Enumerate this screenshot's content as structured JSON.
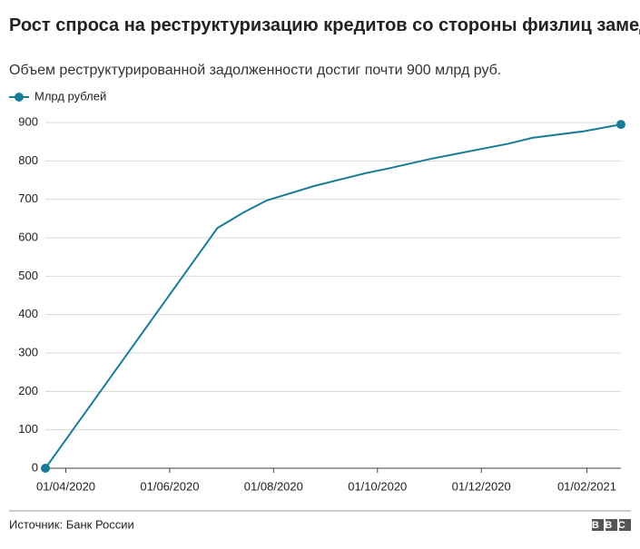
{
  "chart_data": {
    "type": "line",
    "title": "Рост спроса на реструктуризацию кредитов со стороны физлиц замедлился",
    "subtitle": "Объем реструктурированной задолженности достиг почти 900 млрд руб.",
    "source": "Источник: Банк России",
    "logo": "BBC",
    "x": [
      "20/03/2020",
      "29/06/2020",
      "14/07/2020",
      "28/07/2020",
      "25/08/2020",
      "24/09/2020",
      "07/10/2020",
      "01/11/2020",
      "17/12/2020",
      "31/12/2020",
      "30/01/2021",
      "21/02/2021"
    ],
    "series": [
      {
        "name": "Млрд рублей",
        "color": "#1a7b98",
        "values": [
          0,
          625,
          665,
          697,
          735,
          768,
          780,
          805,
          845,
          860,
          877,
          895
        ]
      }
    ],
    "xlim": [
      "20/03/2020",
      "21/02/2021"
    ],
    "xticks": [
      "01/04/2020",
      "01/06/2020",
      "01/08/2020",
      "01/10/2020",
      "01/12/2020",
      "01/02/2021"
    ],
    "ylim": [
      0,
      900
    ],
    "yticks": [
      0,
      100,
      200,
      300,
      400,
      500,
      600,
      700,
      800,
      900
    ],
    "grid": true
  }
}
